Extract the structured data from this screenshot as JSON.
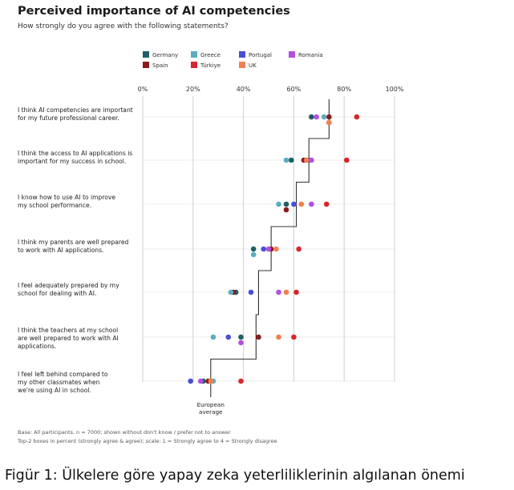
{
  "chart_data": {
    "type": "scatter",
    "title": "Perceived importance of AI competencies",
    "subtitle": "How strongly do you agree with the following statements?",
    "x_ticks": [
      "0%",
      "20%",
      "40%",
      "60%",
      "80%",
      "100%"
    ],
    "xlim": [
      0,
      100
    ],
    "grid": true,
    "legend_placement": "top-center",
    "categories": [
      [
        "I think AI competencies are important",
        "for my future professional career."
      ],
      [
        "I think the access to AI applications is",
        "important for my success in school."
      ],
      [
        "I know how to use AI to improve",
        "my school performance."
      ],
      [
        "I think my parents are well prepared",
        "to work with AI applications."
      ],
      [
        "I feel adequately prepared by my",
        "school for dealing with AI."
      ],
      [
        "I think the teachers at my school",
        "are well prepared to work with AI",
        "applications."
      ],
      [
        "I feel left behind compared to",
        "my other classmates when",
        "we're using AI in school."
      ]
    ],
    "series": [
      {
        "name": "Germany",
        "color": "#1f5f66",
        "values": [
          67,
          59,
          57,
          44,
          37,
          39,
          24
        ]
      },
      {
        "name": "Spain",
        "color": "#8b1a1a",
        "values": [
          74,
          64,
          57,
          51,
          36,
          46,
          26
        ]
      },
      {
        "name": "Greece",
        "color": "#5aaec0",
        "values": [
          72,
          57,
          54,
          44,
          35,
          28,
          28
        ]
      },
      {
        "name": "Türkiye",
        "color": "#d8262e",
        "values": [
          85,
          81,
          73,
          62,
          61,
          60,
          39
        ]
      },
      {
        "name": "Portugal",
        "color": "#4a4fd6",
        "values": [
          74,
          66,
          60,
          48,
          43,
          34,
          19
        ]
      },
      {
        "name": "UK",
        "color": "#f08050",
        "values": [
          74,
          65,
          63,
          53,
          57,
          54,
          27
        ]
      },
      {
        "name": "Romania",
        "color": "#b44fe0",
        "values": [
          69,
          67,
          67,
          50,
          54,
          39,
          23
        ]
      }
    ],
    "european_average": {
      "label": [
        "European",
        "average"
      ],
      "values": [
        74,
        66,
        61,
        51,
        46,
        45,
        27
      ]
    }
  },
  "footnotes": [
    "Base: All participants, n = 7000; shown without don't know / prefer not to answer",
    "Top-2 boxes in percent (strongly agree & agree); scale: 1 = Strongly agree to 4 = Strongly disagree"
  ],
  "caption": "Figür 1: Ülkelere göre  yapay zeka yeterliliklerinin algılanan önemi"
}
